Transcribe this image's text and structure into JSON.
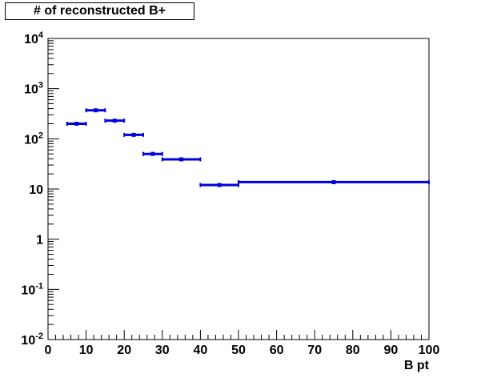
{
  "chart_data": {
    "type": "histogram",
    "title": "# of reconstructed B+",
    "xlabel": "B pt",
    "ylabel": "",
    "xlim": [
      0,
      100
    ],
    "ylim": [
      0.01,
      10000
    ],
    "y_scale": "log",
    "grid": false,
    "legend": "none",
    "x_ticks": [
      "0",
      "10",
      "20",
      "30",
      "40",
      "50",
      "60",
      "70",
      "80",
      "90",
      "100"
    ],
    "y_ticks": [
      {
        "base": "10",
        "exp": "-2"
      },
      {
        "base": "10",
        "exp": "-1"
      },
      {
        "base": "1",
        "exp": ""
      },
      {
        "base": "10",
        "exp": ""
      },
      {
        "base": "10",
        "exp": "2"
      },
      {
        "base": "10",
        "exp": "3"
      },
      {
        "base": "10",
        "exp": "4"
      }
    ],
    "series": [
      {
        "name": "",
        "color": "#0000dd",
        "bins": [
          {
            "x0": 5,
            "x1": 10,
            "y": 200
          },
          {
            "x0": 10,
            "x1": 15,
            "y": 370
          },
          {
            "x0": 15,
            "x1": 20,
            "y": 230
          },
          {
            "x0": 20,
            "x1": 25,
            "y": 120
          },
          {
            "x0": 25,
            "x1": 30,
            "y": 50
          },
          {
            "x0": 30,
            "x1": 40,
            "y": 39
          },
          {
            "x0": 40,
            "x1": 50,
            "y": 12
          },
          {
            "x0": 50,
            "x1": 100,
            "y": 13.7
          }
        ]
      }
    ]
  }
}
